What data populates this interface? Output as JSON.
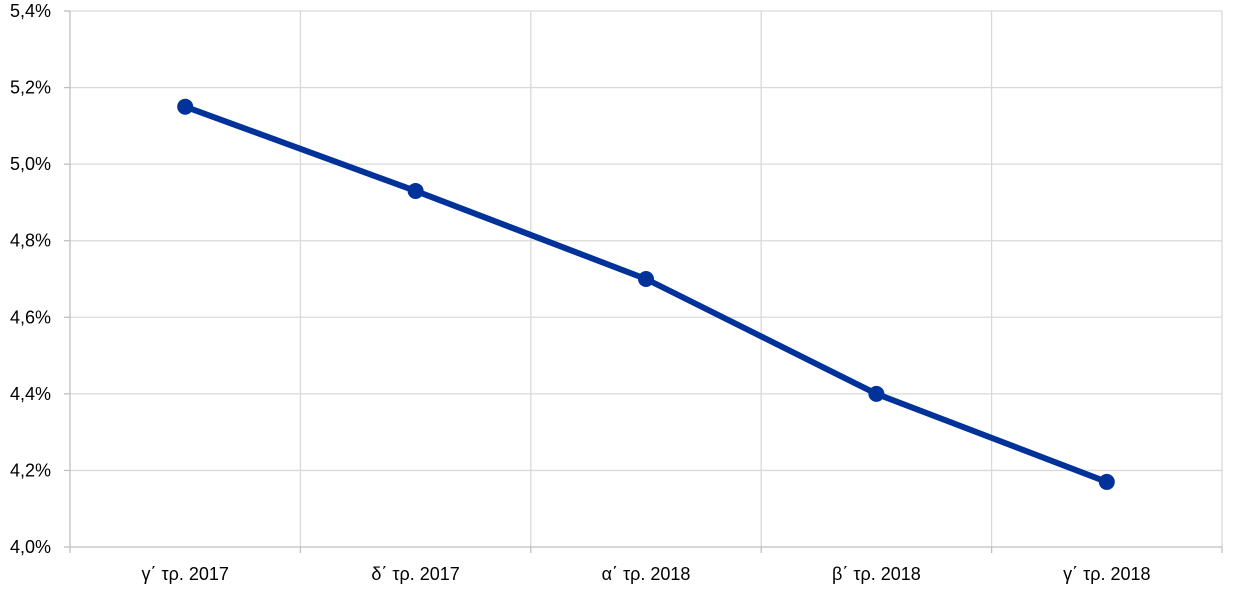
{
  "chart_data": {
    "type": "line",
    "title": "",
    "xlabel": "",
    "ylabel": "",
    "categories": [
      "γ΄ τρ. 2017",
      "δ΄ τρ. 2017",
      "α΄ τρ. 2018",
      "β΄ τρ. 2018",
      "γ΄ τρ. 2018"
    ],
    "series": [
      {
        "values": [
          5.15,
          4.93,
          4.7,
          4.4,
          4.17
        ]
      }
    ],
    "ylim": [
      4.0,
      5.4
    ],
    "yticks": [
      4.0,
      4.2,
      4.4,
      4.6,
      4.8,
      5.0,
      5.2,
      5.4
    ],
    "ytick_labels": [
      "4,0%",
      "4,2%",
      "4,4%",
      "4,6%",
      "4,8%",
      "5,0%",
      "5,2%",
      "5,4%"
    ],
    "grid": true,
    "legend": "none",
    "colors": {
      "line": "#003299",
      "grid": "#d9d9d9",
      "axis": "#bfbfbf"
    }
  }
}
